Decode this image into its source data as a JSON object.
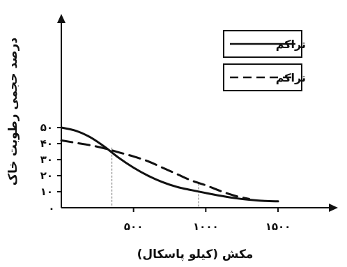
{
  "chart_data": {
    "type": "line",
    "xlabel": "مکش (کیلو پاسکال)",
    "ylabel": "درصد حجمی رطوبت خاک",
    "xlim": [
      0,
      1700
    ],
    "ylim": [
      0,
      55
    ],
    "x_ticks": [
      500,
      1000,
      1500
    ],
    "x_tick_labels": [
      "۵۰۰",
      "۱۰۰۰",
      "۱۵۰۰"
    ],
    "y_ticks": [
      10,
      20,
      30,
      40,
      50
    ],
    "y_tick_labels": [
      "۱۰",
      "۲۰",
      "۳۰",
      "۴۰",
      "۵۰"
    ],
    "origin_label": "۰",
    "legend_position": "top-right",
    "series": [
      {
        "name": "تراکم",
        "style": "solid",
        "x": [
          0,
          100,
          200,
          300,
          400,
          500,
          600,
          700,
          800,
          900,
          1000,
          1100,
          1200,
          1300,
          1400,
          1500
        ],
        "y": [
          50,
          48,
          44,
          38,
          31,
          25,
          20,
          16,
          13,
          11,
          9.2,
          7.5,
          6.0,
          5.0,
          4.3,
          4.0
        ]
      },
      {
        "name": "تراکم",
        "style": "dashed",
        "x": [
          0,
          100,
          200,
          300,
          400,
          500,
          600,
          700,
          800,
          900,
          1000,
          1100,
          1200,
          1300
        ],
        "y": [
          42,
          40.5,
          39,
          37,
          34.5,
          32,
          29,
          25,
          21,
          17,
          14,
          10.5,
          7.5,
          5.5
        ]
      }
    ],
    "reference_lines": [
      {
        "x": 350,
        "y": 37.5
      },
      {
        "x": 950,
        "y": 15
      }
    ],
    "line_color": "#111111",
    "reference_line_color": "#888888"
  }
}
